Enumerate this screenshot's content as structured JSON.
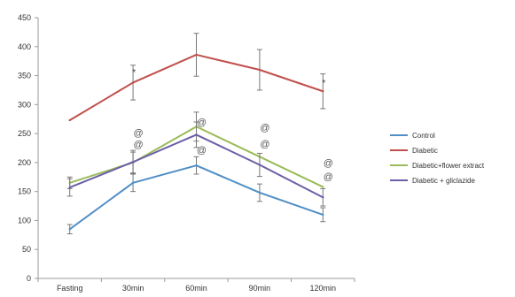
{
  "chart_data": {
    "type": "line",
    "categories": [
      "Fasting",
      "30min",
      "60min",
      "90min",
      "120min"
    ],
    "ylim": [
      0,
      450
    ],
    "yticks": [
      0,
      50,
      100,
      150,
      200,
      250,
      300,
      350,
      400,
      450
    ],
    "grid": false,
    "legend_position": "right",
    "series": [
      {
        "name": "Control",
        "color": "#4f8fc6",
        "values": [
          85,
          165,
          195,
          148,
          110
        ],
        "errors": [
          8,
          15,
          15,
          15,
          12
        ]
      },
      {
        "name": "Diabetic",
        "color": "#c0504d",
        "values": [
          273,
          338,
          386,
          360,
          323
        ],
        "errors": [
          0,
          30,
          37,
          35,
          30
        ]
      },
      {
        "name": "Diabetic+flower extract",
        "color": "#9bbb59",
        "values": [
          165,
          200,
          262,
          210,
          158
        ],
        "errors": [
          10,
          18,
          25,
          0,
          0
        ]
      },
      {
        "name": "Diabetic + gliclazide",
        "color": "#6a5fa8",
        "values": [
          157,
          201,
          248,
          196,
          140
        ],
        "errors": [
          15,
          20,
          22,
          20,
          15
        ]
      }
    ],
    "annotations": [
      {
        "category": "30min",
        "y": 356,
        "text": "*"
      },
      {
        "category": "120min",
        "y": 338,
        "text": "*"
      },
      {
        "category": "30min",
        "y": 252,
        "text": "@"
      },
      {
        "category": "30min",
        "y": 232,
        "text": "@"
      },
      {
        "category": "60min",
        "y": 270,
        "text": "@"
      },
      {
        "category": "60min",
        "y": 222,
        "text": "@"
      },
      {
        "category": "90min",
        "y": 261,
        "text": "@"
      },
      {
        "category": "90min",
        "y": 233,
        "text": "@"
      },
      {
        "category": "120min",
        "y": 200,
        "text": "@"
      },
      {
        "category": "120min",
        "y": 176,
        "text": "@"
      }
    ]
  }
}
